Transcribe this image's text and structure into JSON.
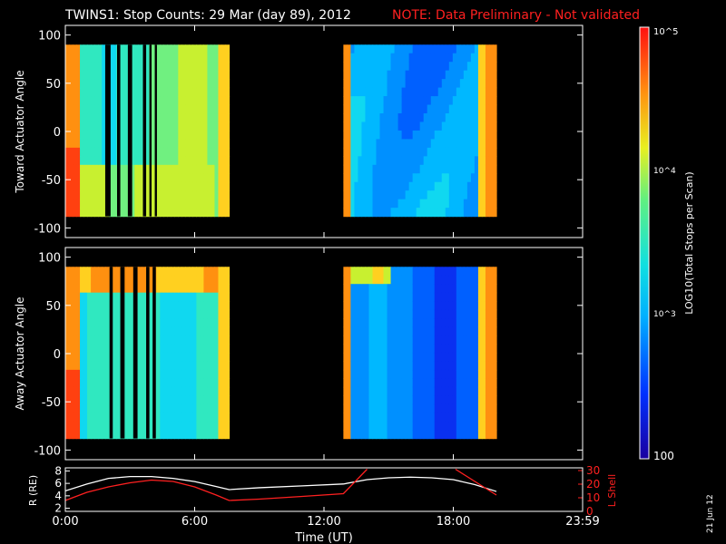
{
  "chart_data": {
    "type": "heatmap",
    "title": "TWINS1: Stop Counts: 29 Mar (day  89), 2012",
    "note": "NOTE: Data Preliminary - Not validated",
    "xlabel": "Time (UT)",
    "x_ticks_hours": [
      0,
      6,
      12,
      18,
      24
    ],
    "x_tick_labels": [
      "0:00",
      "6:00",
      "12:00",
      "18:00",
      "23:59"
    ],
    "xlim_hours": [
      0,
      24
    ],
    "date_stamp": "21 Jun 12",
    "colorbar": {
      "label": "LOG10(Total Stops per Scan)",
      "ticks": [
        "10^5",
        "10^4",
        "10^3",
        "100"
      ],
      "range": [
        100,
        100000
      ],
      "scale": "log"
    },
    "data_intervals_hours": [
      [
        0.0,
        7.6
      ],
      [
        12.9,
        20.0
      ]
    ],
    "panels": [
      {
        "ylabel": "Toward Actuator Angle",
        "ylim": [
          -110,
          110
        ],
        "yticks": [
          -100,
          -50,
          0,
          50,
          100
        ],
        "angle_range": [
          -88,
          90
        ],
        "black_gaps_hours": [
          [
            1.85,
            2.1
          ],
          [
            2.4,
            2.55
          ],
          [
            2.9,
            3.1
          ],
          [
            3.6,
            3.75
          ],
          [
            3.9,
            4.0
          ],
          [
            4.15,
            4.25
          ]
        ]
      },
      {
        "ylabel": "Away Actuator Angle",
        "ylim": [
          -110,
          110
        ],
        "yticks": [
          -100,
          -50,
          0,
          50,
          100
        ],
        "angle_range": [
          -88,
          90
        ],
        "black_gaps_hours": [
          [
            2.05,
            2.2
          ],
          [
            2.55,
            2.75
          ],
          [
            3.15,
            3.35
          ],
          [
            3.75,
            3.9
          ],
          [
            4.05,
            4.2
          ]
        ]
      }
    ],
    "orbit": {
      "ylabel_left": "R (RE)",
      "ylabel_right": "L Shell",
      "ylim_left": [
        1.5,
        8.5
      ],
      "yticks_left": [
        2,
        4,
        6,
        8
      ],
      "ylim_right": [
        0,
        32
      ],
      "yticks_right": [
        0,
        10,
        20,
        30
      ],
      "series": [
        {
          "name": "R",
          "color": "#ffffff",
          "x": [
            0,
            1,
            2,
            3,
            4,
            5,
            6,
            7,
            7.6,
            9,
            11,
            12.9,
            14,
            15,
            16,
            17,
            18,
            19,
            20
          ],
          "values": [
            4.8,
            5.9,
            6.8,
            7.1,
            7.1,
            6.8,
            6.3,
            5.5,
            5.0,
            5.3,
            5.6,
            5.9,
            6.6,
            6.9,
            7.0,
            6.9,
            6.6,
            5.8,
            4.7
          ]
        },
        {
          "name": "L",
          "color": "#ff2020",
          "x": [
            0,
            1,
            2,
            3,
            4,
            5,
            6,
            7,
            7.6,
            9,
            11,
            12.9,
            14
          ],
          "values": [
            8,
            14,
            18,
            21,
            23,
            22,
            18,
            12,
            8,
            9,
            11,
            13,
            31
          ],
          "x2": [
            18.1,
            19,
            20
          ],
          "values2": [
            31,
            22,
            12
          ]
        }
      ]
    }
  }
}
